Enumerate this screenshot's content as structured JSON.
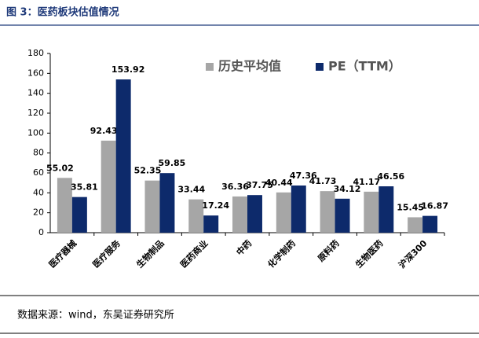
{
  "header": {
    "title": "图 3：医药板块估值情况"
  },
  "chart_data": {
    "type": "bar",
    "categories": [
      "医疗器械",
      "医疗服务",
      "生物制品",
      "医药商业",
      "中药",
      "化学制药",
      "原料药",
      "生物医药",
      "沪深300"
    ],
    "series": [
      {
        "name": "历史平均值",
        "color": "#a6a6a6",
        "values": [
          55.02,
          92.43,
          52.35,
          33.44,
          36.36,
          40.44,
          41.73,
          41.17,
          15.45
        ]
      },
      {
        "name": "PE（TTM）",
        "color": "#0d2a6b",
        "values": [
          35.81,
          153.92,
          59.85,
          17.24,
          37.75,
          47.36,
          34.12,
          46.56,
          16.87
        ]
      }
    ],
    "ylim": [
      0,
      180
    ],
    "yticks": [
      0,
      20,
      40,
      60,
      80,
      100,
      120,
      140,
      160,
      180
    ],
    "grid": false,
    "legend": "top-right"
  },
  "footer": {
    "source": "数据来源：wind，东吴证券研究所"
  }
}
